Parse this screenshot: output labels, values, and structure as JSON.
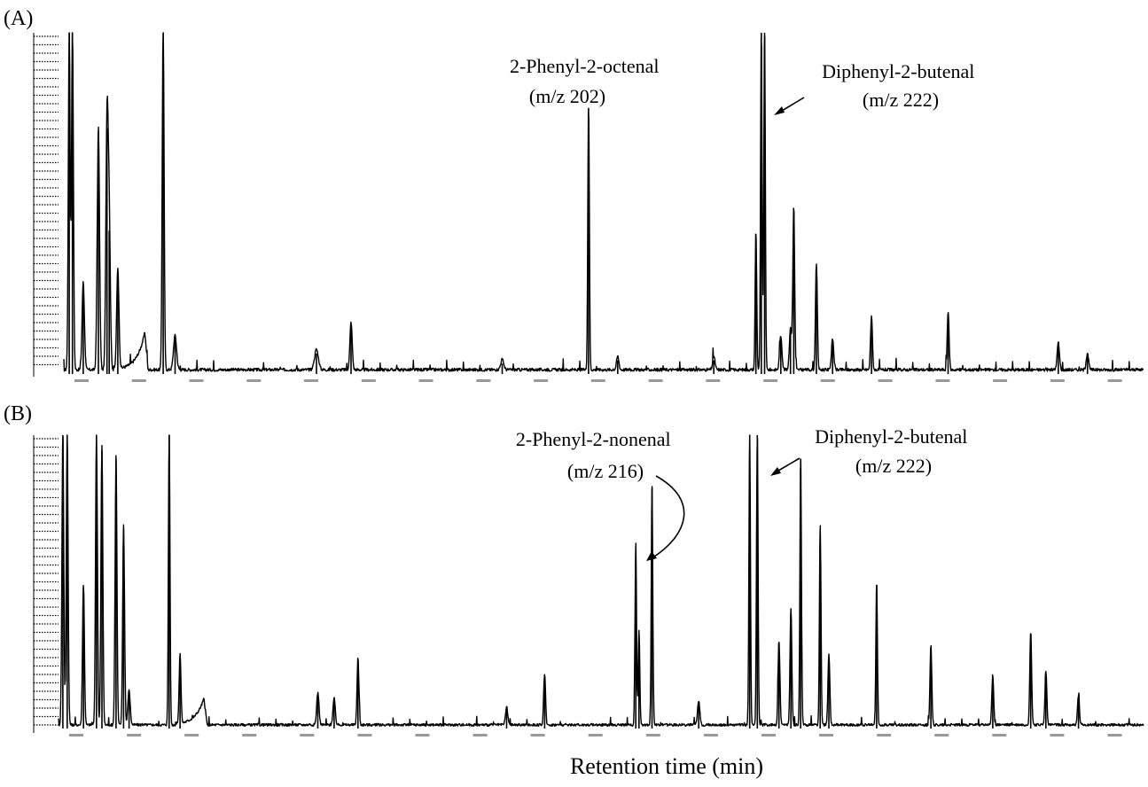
{
  "figure": {
    "xlabel": "Retention time (min)"
  },
  "chart_data": [
    {
      "type": "line",
      "panel_label": "(A)",
      "title": "",
      "xlabel": "Retention time (min)",
      "ylabel": "",
      "grid": false,
      "legend": "none",
      "xlim": [
        0,
        100
      ],
      "ylim": [
        0,
        100
      ],
      "series": [
        {
          "peaks": [
            {
              "x": 0.5,
              "y": 100,
              "w": 0.12
            },
            {
              "x": 0.8,
              "y": 100,
              "w": 0.12
            },
            {
              "x": 1.8,
              "y": 26,
              "w": 0.15
            },
            {
              "x": 3.2,
              "y": 71,
              "w": 0.15
            },
            {
              "x": 4.0,
              "y": 72,
              "w": 0.15
            },
            {
              "x": 4.2,
              "y": 42,
              "w": 0.15
            },
            {
              "x": 5.0,
              "y": 30,
              "w": 0.15
            },
            {
              "x": 9.2,
              "y": 100,
              "w": 0.12
            },
            {
              "x": 10.3,
              "y": 10,
              "w": 0.2
            },
            {
              "x": 23.4,
              "y": 6,
              "w": 0.25
            },
            {
              "x": 26.6,
              "y": 14,
              "w": 0.15
            },
            {
              "x": 40.6,
              "y": 3,
              "w": 0.2
            },
            {
              "x": 48.6,
              "y": 78,
              "w": 0.1
            },
            {
              "x": 51.3,
              "y": 4,
              "w": 0.15
            },
            {
              "x": 60.2,
              "y": 4,
              "w": 0.15
            },
            {
              "x": 64.1,
              "y": 41,
              "w": 0.1
            },
            {
              "x": 64.6,
              "y": 100,
              "w": 0.1
            },
            {
              "x": 64.9,
              "y": 100,
              "w": 0.1
            },
            {
              "x": 66.4,
              "y": 10,
              "w": 0.15
            },
            {
              "x": 67.3,
              "y": 12,
              "w": 0.15
            },
            {
              "x": 67.6,
              "y": 48,
              "w": 0.12
            },
            {
              "x": 69.7,
              "y": 31,
              "w": 0.12
            },
            {
              "x": 71.2,
              "y": 9,
              "w": 0.15
            },
            {
              "x": 74.8,
              "y": 16,
              "w": 0.12
            },
            {
              "x": 81.9,
              "y": 17,
              "w": 0.12
            },
            {
              "x": 92.1,
              "y": 8,
              "w": 0.15
            },
            {
              "x": 94.8,
              "y": 5,
              "w": 0.15
            }
          ],
          "bumps": [
            {
              "x": 7.5,
              "y": 11,
              "w": 1.2
            }
          ]
        }
      ],
      "annotations": [
        {
          "lines": [
            "2-Phenyl-2-octenal",
            "(m/z 202)"
          ]
        },
        {
          "lines": [
            "Diphenyl-2-butenal",
            "(m/z 222)"
          ]
        }
      ]
    },
    {
      "type": "line",
      "panel_label": "(B)",
      "title": "",
      "xlabel": "Retention time (min)",
      "ylabel": "",
      "grid": false,
      "legend": "none",
      "xlim": [
        0,
        100
      ],
      "ylim": [
        0,
        100
      ],
      "series": [
        {
          "peaks": [
            {
              "x": 0.4,
              "y": 100,
              "w": 0.12
            },
            {
              "x": 0.8,
              "y": 100,
              "w": 0.12
            },
            {
              "x": 2.3,
              "y": 48,
              "w": 0.12
            },
            {
              "x": 3.5,
              "y": 100,
              "w": 0.12
            },
            {
              "x": 4.0,
              "y": 95,
              "w": 0.12
            },
            {
              "x": 5.3,
              "y": 92,
              "w": 0.12
            },
            {
              "x": 6.0,
              "y": 68,
              "w": 0.12
            },
            {
              "x": 6.5,
              "y": 12,
              "w": 0.15
            },
            {
              "x": 10.2,
              "y": 100,
              "w": 0.1
            },
            {
              "x": 11.2,
              "y": 24,
              "w": 0.12
            },
            {
              "x": 23.9,
              "y": 11,
              "w": 0.15
            },
            {
              "x": 25.4,
              "y": 9,
              "w": 0.15
            },
            {
              "x": 27.6,
              "y": 23,
              "w": 0.12
            },
            {
              "x": 41.3,
              "y": 6,
              "w": 0.15
            },
            {
              "x": 44.8,
              "y": 17,
              "w": 0.12
            },
            {
              "x": 53.2,
              "y": 62,
              "w": 0.1
            },
            {
              "x": 53.5,
              "y": 32,
              "w": 0.1
            },
            {
              "x": 54.7,
              "y": 82,
              "w": 0.1
            },
            {
              "x": 59.0,
              "y": 8,
              "w": 0.15
            },
            {
              "x": 63.7,
              "y": 100,
              "w": 0.1
            },
            {
              "x": 64.4,
              "y": 100,
              "w": 0.1
            },
            {
              "x": 66.4,
              "y": 29,
              "w": 0.12
            },
            {
              "x": 67.5,
              "y": 40,
              "w": 0.12
            },
            {
              "x": 68.4,
              "y": 92,
              "w": 0.1
            },
            {
              "x": 70.2,
              "y": 68,
              "w": 0.1
            },
            {
              "x": 71.0,
              "y": 24,
              "w": 0.12
            },
            {
              "x": 75.4,
              "y": 49,
              "w": 0.1
            },
            {
              "x": 80.4,
              "y": 27,
              "w": 0.12
            },
            {
              "x": 86.1,
              "y": 17,
              "w": 0.12
            },
            {
              "x": 89.6,
              "y": 32,
              "w": 0.12
            },
            {
              "x": 91.0,
              "y": 18,
              "w": 0.12
            },
            {
              "x": 94.0,
              "y": 10,
              "w": 0.12
            }
          ],
          "bumps": [
            {
              "x": 13.4,
              "y": 9,
              "w": 1.3
            }
          ]
        }
      ],
      "annotations": [
        {
          "lines": [
            "2-Phenyl-2-nonenal",
            "(m/z 216)"
          ]
        },
        {
          "lines": [
            "Diphenyl-2-butenal",
            "(m/z 222)"
          ]
        }
      ]
    }
  ]
}
